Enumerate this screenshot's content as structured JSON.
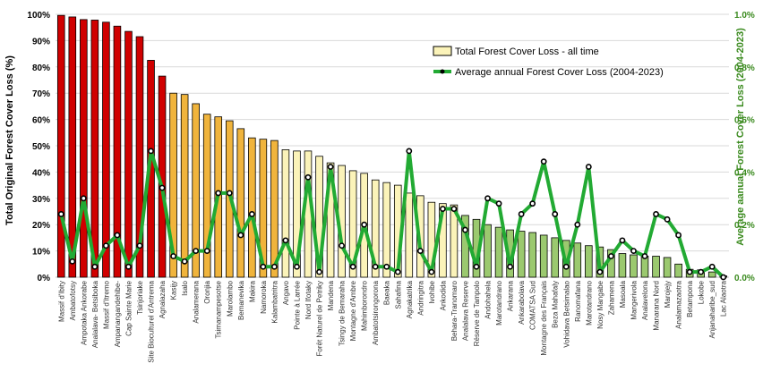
{
  "chart_data": {
    "type": "bar",
    "title": "",
    "ylabel": "Total Original Forest Cover Loss (%)",
    "y2label": "Average aanual Forest Cover Loss (2004-2023)",
    "ylim": [
      0,
      100
    ],
    "y2lim": [
      0,
      1.0
    ],
    "yticks": [
      "0%",
      "10%",
      "20%",
      "30%",
      "40%",
      "50%",
      "60%",
      "70%",
      "80%",
      "90%",
      "100%"
    ],
    "y2ticks": [
      "0.0%",
      "0.2%",
      "0.4%",
      "0.6%",
      "0.8%",
      "1.0%"
    ],
    "grid": true,
    "legend_position": "top-right",
    "colors": {
      "red": "#d00000",
      "orange": "#f0b43c",
      "lightyellow": "#fbf3b9",
      "green": "#9bc96f",
      "line": "#22aa33",
      "marker_fill": "#ffffff",
      "marker_edge": "#000000"
    },
    "categories": [
      "Massif d'Ibity",
      "Ambatofotsy",
      "Ampotaka Ankorabe",
      "Analalava- Betsiboka",
      "Massif d'Itremo",
      "Ampanangandehibe-",
      "Cap Sainte Marie",
      "Tsinjoriake",
      "Site Bioculturel d'Antrema",
      "Agnalazaha",
      "Kasijy",
      "Isalo",
      "Analamerana",
      "Oronjia",
      "Tsimanampesotse",
      "Marolambo",
      "Bemanevika",
      "Makira",
      "Namoroka",
      "Kalambatritra",
      "Angavo",
      "Pointe à Larrée",
      "Nord Ifotaky",
      "Forêt Naturel de Petriky",
      "Mandena",
      "Tsingy de Bemaraha",
      "Montagne d'Ambre",
      "Mahimborondro",
      "Ambatotsirongorona",
      "Baeaka",
      "Sahafina",
      "Agnakatrika",
      "Andringitra",
      "Ivohibe",
      "Ankodida",
      "Behara-Tranomaro",
      "Analalava Reserve",
      "Réserve de Tampolo",
      "Andohahela",
      "Marotandrano",
      "Ankarana",
      "Ankarabolava",
      "COMATSA Sud",
      "Montagne des Français",
      "Beza Mahafaly",
      "Vohidava Betsimalao",
      "Ranomafana",
      "Marotandrano",
      "Nosy Mangabe",
      "Zahamena",
      "Masoala",
      "Mangerivola",
      "Analavelona",
      "Manarana Nord",
      "Marojejy",
      "Analamazaotra",
      "Betampona",
      "Lokobe",
      "Anjanaharibe_sud",
      "Lac Alaotra"
    ],
    "series": [
      {
        "name": "Total Forest Cover Loss - all time",
        "type": "bar",
        "axis": "left",
        "values": [
          99.6,
          99,
          98,
          97.8,
          97,
          95.5,
          93.5,
          91.5,
          82.5,
          76.5,
          70,
          69.5,
          66,
          62,
          61,
          59.5,
          56.5,
          53,
          52.5,
          52,
          48.5,
          48,
          48,
          46,
          43.5,
          42.5,
          40.5,
          39.5,
          37,
          36,
          35,
          32,
          31,
          28.5,
          28,
          27.5,
          23.5,
          22,
          20,
          19,
          18,
          17.5,
          17,
          16,
          15,
          14,
          13,
          12,
          11.5,
          10.5,
          9,
          8.5,
          8,
          8,
          7.5,
          5,
          3,
          2.8,
          2,
          0.5
        ],
        "color_groups": [
          "red",
          "red",
          "red",
          "red",
          "red",
          "red",
          "red",
          "red",
          "red",
          "red",
          "orange",
          "orange",
          "orange",
          "orange",
          "orange",
          "orange",
          "orange",
          "orange",
          "orange",
          "orange",
          "lightyellow",
          "lightyellow",
          "lightyellow",
          "lightyellow",
          "lightyellow",
          "lightyellow",
          "lightyellow",
          "lightyellow",
          "lightyellow",
          "lightyellow",
          "lightyellow",
          "lightyellow",
          "lightyellow",
          "lightyellow",
          "lightyellow",
          "lightyellow",
          "green",
          "green",
          "green",
          "green",
          "green",
          "green",
          "green",
          "green",
          "green",
          "green",
          "green",
          "green",
          "green",
          "green",
          "green",
          "green",
          "green",
          "green",
          "green",
          "green",
          "green",
          "green",
          "green",
          "green"
        ]
      },
      {
        "name": "Average annual Forest Cover Loss (2004-2023)",
        "type": "line",
        "axis": "right",
        "values": [
          0.24,
          0.06,
          0.3,
          0.04,
          0.12,
          0.16,
          0.04,
          0.12,
          0.48,
          0.34,
          0.08,
          0.06,
          0.1,
          0.1,
          0.32,
          0.32,
          0.16,
          0.24,
          0.04,
          0.04,
          0.14,
          0.04,
          0.38,
          0.02,
          0.42,
          0.12,
          0.04,
          0.2,
          0.04,
          0.04,
          0.02,
          0.48,
          0.1,
          0.02,
          0.26,
          0.26,
          0.18,
          0.04,
          0.3,
          0.28,
          0.04,
          0.24,
          0.28,
          0.44,
          0.24,
          0.04,
          0.2,
          0.42,
          0.02,
          0.08,
          0.14,
          0.1,
          0.08,
          0.24,
          0.22,
          0.16,
          0.02,
          0.02,
          0.04,
          0.0
        ]
      }
    ]
  }
}
